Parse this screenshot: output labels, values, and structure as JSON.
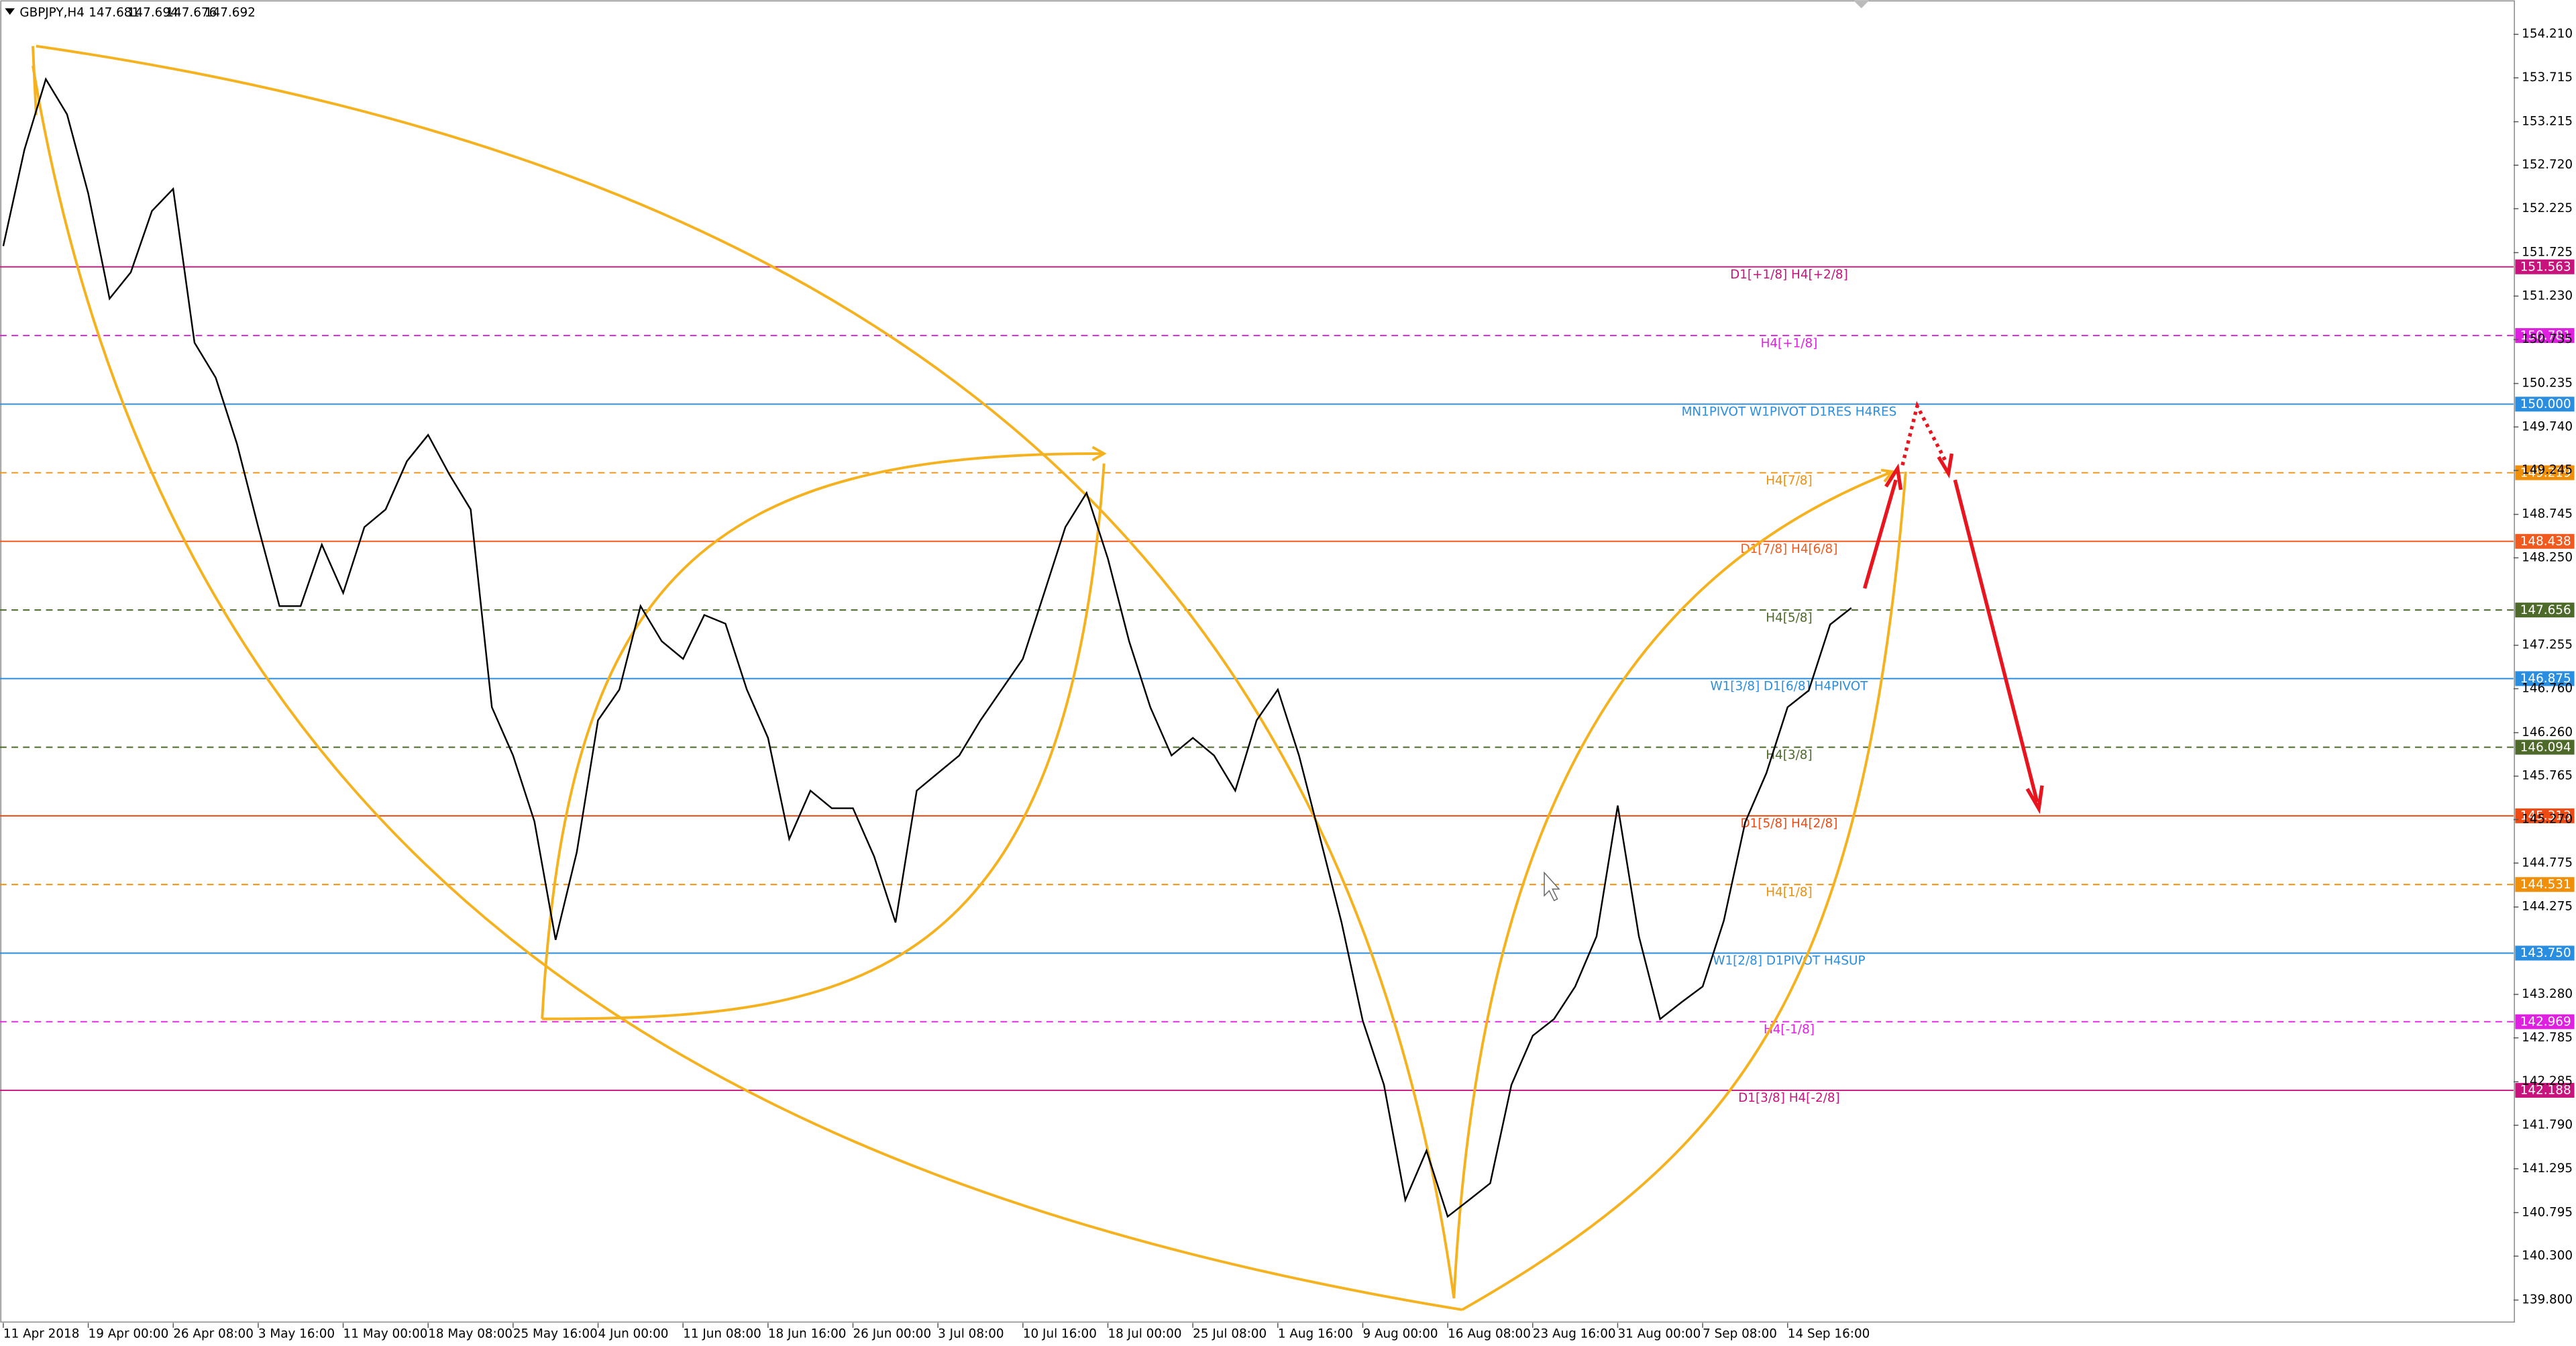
{
  "chart_data": {
    "type": "line",
    "title": "GBPJPY,H4",
    "ohlc": [
      147.681,
      147.694,
      147.676,
      147.692
    ],
    "categories": [
      "11 Apr 2018",
      null,
      null,
      null,
      "19 Apr 00:00",
      null,
      null,
      null,
      "26 Apr 08:00",
      null,
      null,
      null,
      "3 May 16:00",
      null,
      null,
      null,
      "11 May 00:00",
      null,
      null,
      null,
      "18 May 08:00",
      null,
      null,
      null,
      "25 May 16:00",
      null,
      null,
      null,
      "4 Jun 00:00",
      null,
      null,
      null,
      "11 Jun 08:00",
      null,
      null,
      null,
      "18 Jun 16:00",
      null,
      null,
      null,
      "26 Jun 00:00",
      null,
      null,
      null,
      "3 Jul 08:00",
      null,
      null,
      null,
      "10 Jul 16:00",
      null,
      null,
      null,
      "18 Jul 00:00",
      null,
      null,
      null,
      "25 Jul 08:00",
      null,
      null,
      null,
      "1 Aug 16:00",
      null,
      null,
      null,
      "9 Aug 00:00",
      null,
      null,
      null,
      "16 Aug 08:00",
      null,
      null,
      null,
      "23 Aug 16:00",
      null,
      null,
      null,
      "31 Aug 00:00",
      null,
      null,
      null,
      "7 Sep 08:00",
      null,
      null,
      null,
      "14 Sep 16:00",
      null,
      null,
      null
    ],
    "series": [
      {
        "name": "GBPJPY,H4",
        "color": "#000000",
        "values": [
          151.8,
          152.9,
          153.7,
          153.3,
          152.4,
          151.2,
          151.5,
          152.2,
          152.45,
          150.7,
          150.3,
          149.55,
          148.6,
          147.7,
          147.7,
          148.4,
          147.85,
          148.6,
          148.8,
          149.35,
          149.65,
          149.2,
          148.8,
          146.55,
          146.0,
          145.25,
          143.9,
          144.9,
          146.4,
          146.75,
          147.7,
          147.3,
          147.1,
          147.6,
          147.5,
          146.75,
          146.2,
          145.05,
          145.6,
          145.4,
          145.4,
          144.85,
          144.1,
          145.6,
          145.8,
          146.0,
          146.4,
          146.75,
          147.1,
          147.85,
          148.6,
          148.99,
          148.24,
          147.3,
          146.55,
          146.0,
          146.2,
          146.0,
          145.6,
          146.4,
          146.75,
          146.0,
          145.05,
          144.1,
          142.98,
          142.25,
          140.94,
          141.5,
          140.75,
          140.94,
          141.13,
          142.25,
          142.81,
          143.0,
          143.37,
          143.94,
          145.43,
          143.94,
          143.0,
          143.19,
          143.37,
          144.12,
          145.24,
          145.8,
          146.55,
          146.74,
          147.49,
          147.68
        ]
      }
    ],
    "ylim": [
      139.54,
      154.6
    ],
    "yticks": [
      {
        "value": 154.21,
        "label": "154.210"
      },
      153.715,
      153.215,
      {
        "value": 152.72,
        "label": "152.720"
      },
      152.225,
      151.725,
      {
        "value": 151.23,
        "label": "151.230"
      },
      150.735,
      150.235,
      {
        "value": 149.74,
        "label": "149.740"
      },
      149.245,
      148.745,
      {
        "value": 148.25,
        "label": "148.250"
      },
      147.255,
      {
        "value": 146.76,
        "label": "146.760"
      },
      {
        "value": 146.26,
        "label": "146.260"
      },
      145.765,
      {
        "value": 145.27,
        "label": "145.270"
      },
      144.775,
      144.275,
      {
        "value": 143.28,
        "label": "143.280"
      },
      142.785,
      142.285,
      {
        "value": 141.79,
        "label": "141.790"
      },
      141.295,
      140.795,
      {
        "value": 140.3,
        "label": "140.300"
      },
      {
        "value": 139.8,
        "label": "139.800"
      }
    ],
    "grid": false,
    "levels": [
      {
        "value": 151.563,
        "label": "D1[+1/8] H4[+2/8]",
        "color": "#c8127c",
        "dashed": false
      },
      {
        "value": 150.781,
        "label": "H4[+1/8]",
        "color": "#e020e0",
        "dashed": true
      },
      {
        "value": 150,
        "value_label": "150.000",
        "label": "MN1PIVOT W1PIVOT D1RES H4RES",
        "color": "#2a8ee0",
        "dashed": false
      },
      {
        "value": 149.219,
        "label": "H4[7/8]",
        "color": "#f0900a",
        "dashed": true
      },
      {
        "value": 148.438,
        "label": "D1[7/8] H4[6/8]",
        "color": "#f05a1e",
        "dashed": false
      },
      {
        "value": 147.656,
        "label": "H4[5/8]",
        "color": "#4d6a2a",
        "dashed": true
      },
      {
        "value": 146.875,
        "label": "W1[3/8] D1[6/8] H4PIVOT",
        "color": "#2a8ee0",
        "dashed": false
      },
      {
        "value": 146.094,
        "label": "H4[3/8]",
        "color": "#4d6a2a",
        "dashed": true
      },
      {
        "value": 145.313,
        "label": "D1[5/8] H4[2/8]",
        "color": "#f04a14",
        "dashed": false
      },
      {
        "value": 144.531,
        "label": "H4[1/8]",
        "color": "#f0900a",
        "dashed": true
      },
      {
        "value": 143.75,
        "value_label": "143.750",
        "label": "W1[2/8] D1PIVOT H4SUP",
        "color": "#2a8ee0",
        "dashed": false
      },
      {
        "value": 142.969,
        "label": "H4[-1/8]",
        "color": "#e020e0",
        "dashed": true
      },
      {
        "value": 142.188,
        "label": "D1[3/8] H4[-2/8]",
        "color": "#c8127c",
        "dashed": false
      }
    ]
  }
}
